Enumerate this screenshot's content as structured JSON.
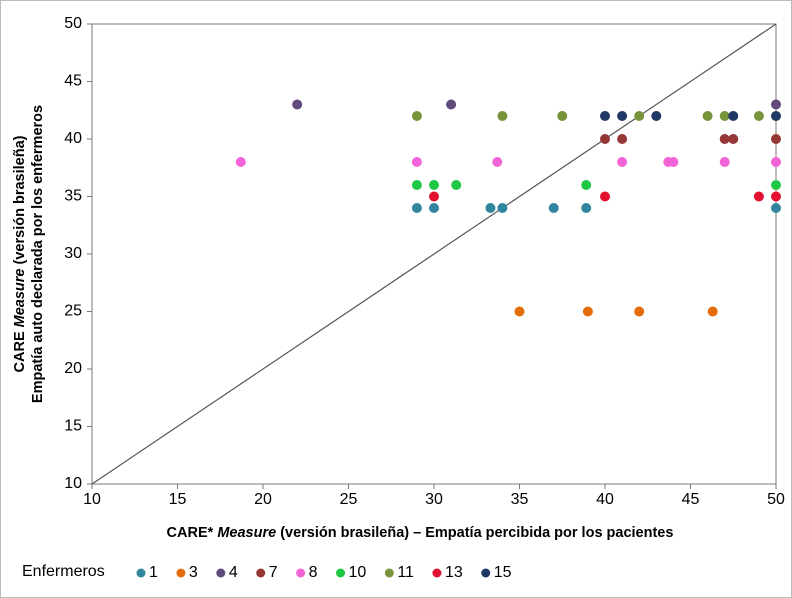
{
  "chart_data": {
    "type": "scatter",
    "x_label": {
      "prefix": "CARE*",
      "italic": "Measure",
      "suffix": "(versión brasileña) – Empatía percibida por los pacientes"
    },
    "y_label": {
      "prefix": "CARE",
      "italic": "Measure",
      "suffix": "(versión brasileña)",
      "line2": "Empatía auto declarada por los enfermeros"
    },
    "xlim": [
      10,
      50
    ],
    "xticks": [
      10,
      15,
      20,
      25,
      30,
      35,
      40,
      45,
      50
    ],
    "ylim": [
      10,
      50
    ],
    "yticks": [
      10,
      15,
      20,
      25,
      30,
      35,
      40,
      45,
      50
    ],
    "legend_title": "Enfermeros",
    "legend_position": "bottom",
    "series": [
      {
        "name": "1",
        "color": "#31859c",
        "x": [
          29,
          30,
          33.3,
          34,
          37,
          38.9,
          50
        ],
        "values": [
          34,
          34,
          34,
          34,
          34,
          34,
          34
        ]
      },
      {
        "name": "3",
        "color": "#e46c0a",
        "x": [
          35,
          39,
          42,
          46.3
        ],
        "values": [
          25,
          25,
          25,
          25
        ]
      },
      {
        "name": "4",
        "color": "#604a7b",
        "x": [
          22,
          31,
          50
        ],
        "values": [
          43,
          43,
          43
        ]
      },
      {
        "name": "7",
        "color": "#953735",
        "x": [
          40,
          41,
          47,
          47.5,
          50
        ],
        "values": [
          40,
          40,
          40,
          40,
          40
        ]
      },
      {
        "name": "8",
        "color": "#f364d8",
        "x": [
          18.7,
          29,
          33.7,
          41,
          43.7,
          44,
          47,
          50
        ],
        "values": [
          38,
          38,
          38,
          38,
          38,
          38,
          38,
          38
        ]
      },
      {
        "name": "10",
        "color": "#1ec845",
        "x": [
          29,
          30,
          31.3,
          38.9,
          50
        ],
        "values": [
          36,
          36,
          36,
          36,
          36
        ]
      },
      {
        "name": "11",
        "color": "#77933c",
        "x": [
          29,
          34,
          37.5,
          42,
          46,
          47,
          49
        ],
        "values": [
          42,
          42,
          42,
          42,
          42,
          42,
          42
        ]
      },
      {
        "name": "13",
        "color": "#e3102f",
        "x": [
          30,
          40,
          49,
          50
        ],
        "values": [
          35,
          35,
          35,
          35
        ]
      },
      {
        "name": "15",
        "color": "#1f3864",
        "x": [
          40,
          41,
          43,
          47.5,
          50
        ],
        "values": [
          42,
          42,
          42,
          42,
          42
        ]
      }
    ]
  }
}
